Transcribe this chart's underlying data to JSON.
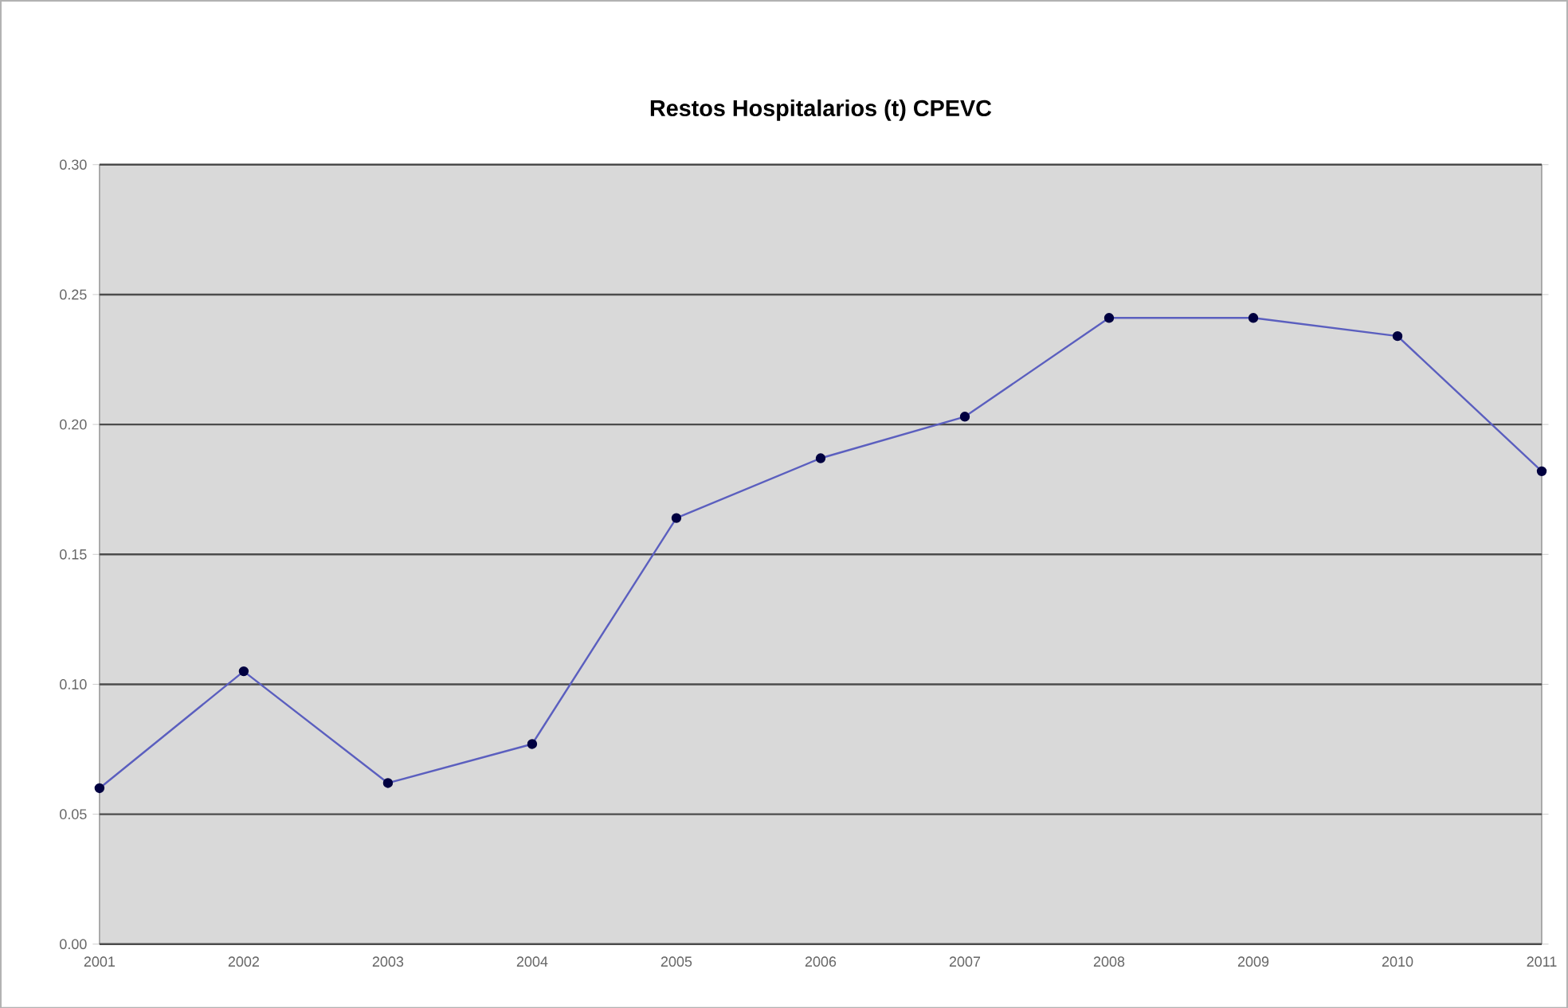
{
  "chart_data": {
    "type": "line",
    "title": "Restos Hospitalarios (t) CPEVC",
    "x": [
      2001,
      2002,
      2003,
      2004,
      2005,
      2006,
      2007,
      2008,
      2009,
      2010,
      2011
    ],
    "values": [
      0.06,
      0.105,
      0.062,
      0.077,
      0.164,
      0.187,
      0.203,
      0.241,
      0.241,
      0.234,
      0.182
    ],
    "color": "#5b5fbf",
    "marker": "circle",
    "xlim": [
      2001,
      2011
    ],
    "xticks": [
      2001,
      2002,
      2003,
      2004,
      2005,
      2006,
      2007,
      2008,
      2009,
      2010,
      2011
    ],
    "ylim": [
      0,
      0.3
    ],
    "yticks": [
      {
        "value": 0,
        "label": "0.00"
      },
      {
        "value": 0.05,
        "label": "0.05"
      },
      {
        "value": 0.1,
        "label": "0.10"
      },
      {
        "value": 0.15,
        "label": "0.15"
      },
      {
        "value": 0.2,
        "label": "0.20"
      },
      {
        "value": 0.25,
        "label": "0.25"
      },
      {
        "value": 0.3,
        "label": "0.30"
      }
    ],
    "grid": "y"
  }
}
